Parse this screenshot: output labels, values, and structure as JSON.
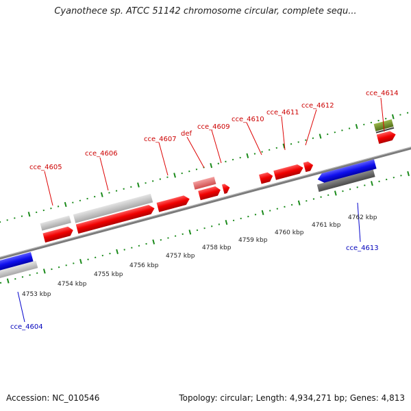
{
  "title": "Cyanothece sp. ATCC 51142 chromosome circular, complete sequ...",
  "footer": {
    "accession": "Accession: NC_010546",
    "info": "Topology: circular; Length: 4,934,271 bp; Genes: 4,813"
  },
  "kbp_ticks": [
    "4753 kbp",
    "4754 kbp",
    "4755 kbp",
    "4756 kbp",
    "4757 kbp",
    "4758 kbp",
    "4759 kbp",
    "4760 kbp",
    "4761 kbp",
    "4762 kbp"
  ],
  "genes_top": [
    "cce_4605",
    "cce_4606",
    "cce_4607",
    "def",
    "cce_4609",
    "cce_4610",
    "cce_4611",
    "cce_4612",
    "cce_4614"
  ],
  "genes_bottom": [
    "cce_4604",
    "cce_4613"
  ],
  "colors": {
    "forward_cds": "#ee0000",
    "reverse_cds": "#1a1adf",
    "gene_grey": "#c0c0c0",
    "gene_dark": "#666666",
    "misc_feature": "#e07070",
    "rna": "#6b8e23",
    "tick": "#1a8a1a",
    "label_top": "#cc0000",
    "label_bottom": "#0000bb",
    "backbone": "#777777"
  }
}
